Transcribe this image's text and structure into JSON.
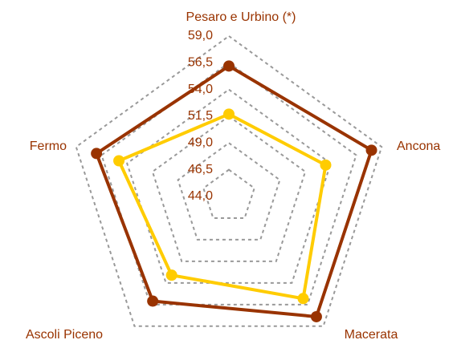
{
  "chart_data": {
    "type": "radar",
    "categories": [
      "Pesaro e Urbino (*)",
      "Ancona",
      "Macerata",
      "Ascoli Piceno",
      "Fermo"
    ],
    "series": [
      {
        "color": "#993300",
        "values": [
          56.2,
          58.0,
          57.9,
          56.1,
          57.0
        ]
      },
      {
        "color": "#ffcc00",
        "values": [
          51.7,
          53.5,
          55.8,
          53.1,
          54.8
        ]
      }
    ],
    "ylim": [
      44,
      59
    ],
    "yticks": [
      {
        "value": 44,
        "label": "44,0"
      },
      {
        "value": 46.5,
        "label": "46,5"
      },
      {
        "value": 49,
        "label": "49,0"
      },
      {
        "value": 51.5,
        "label": "51,5"
      },
      {
        "value": 54,
        "label": "54,0"
      },
      {
        "value": 56.5,
        "label": "56,5"
      },
      {
        "value": 59,
        "label": "59,0"
      }
    ],
    "grid": true
  }
}
